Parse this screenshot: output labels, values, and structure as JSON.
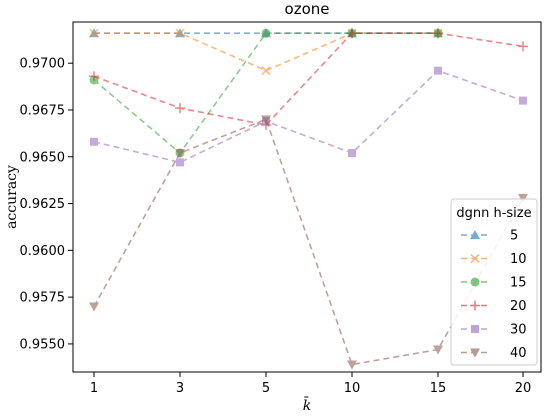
{
  "chart_data": {
    "type": "line",
    "title": "ozone",
    "xlabel": "k̄",
    "ylabel": "accuracy",
    "x_ticks": [
      "1",
      "3",
      "5",
      "10",
      "15",
      "20"
    ],
    "y_ticks": [
      "0.9550",
      "0.9575",
      "0.9600",
      "0.9625",
      "0.9650",
      "0.9675",
      "0.9700"
    ],
    "ylim": [
      0.9535,
      0.9722
    ],
    "legend": {
      "title": "dgnn h-size",
      "position": "lower-right"
    },
    "series": [
      {
        "name": "5",
        "color": "#1f77b4",
        "marker": "triangle-up",
        "values": [
          0.9716,
          0.9716,
          0.9716,
          0.9716,
          0.9716,
          null
        ]
      },
      {
        "name": "10",
        "color": "#ff7f0e",
        "marker": "x",
        "values": [
          0.9716,
          0.9716,
          0.9696,
          0.9716,
          0.9716,
          null
        ]
      },
      {
        "name": "15",
        "color": "#2ca02c",
        "marker": "circle",
        "values": [
          0.9691,
          0.9652,
          0.9716,
          0.9716,
          0.9716,
          null
        ]
      },
      {
        "name": "20",
        "color": "#d62728",
        "marker": "plus",
        "values": [
          0.9693,
          0.9676,
          0.9667,
          0.9716,
          0.9716,
          0.9709
        ]
      },
      {
        "name": "30",
        "color": "#9467bd",
        "marker": "square",
        "values": [
          0.9658,
          0.9647,
          0.9669,
          0.9652,
          0.9696,
          0.968
        ]
      },
      {
        "name": "40",
        "color": "#8c564b",
        "marker": "triangle-down",
        "values": [
          0.957,
          0.9652,
          0.967,
          0.9539,
          0.9547,
          0.9628
        ]
      }
    ]
  }
}
